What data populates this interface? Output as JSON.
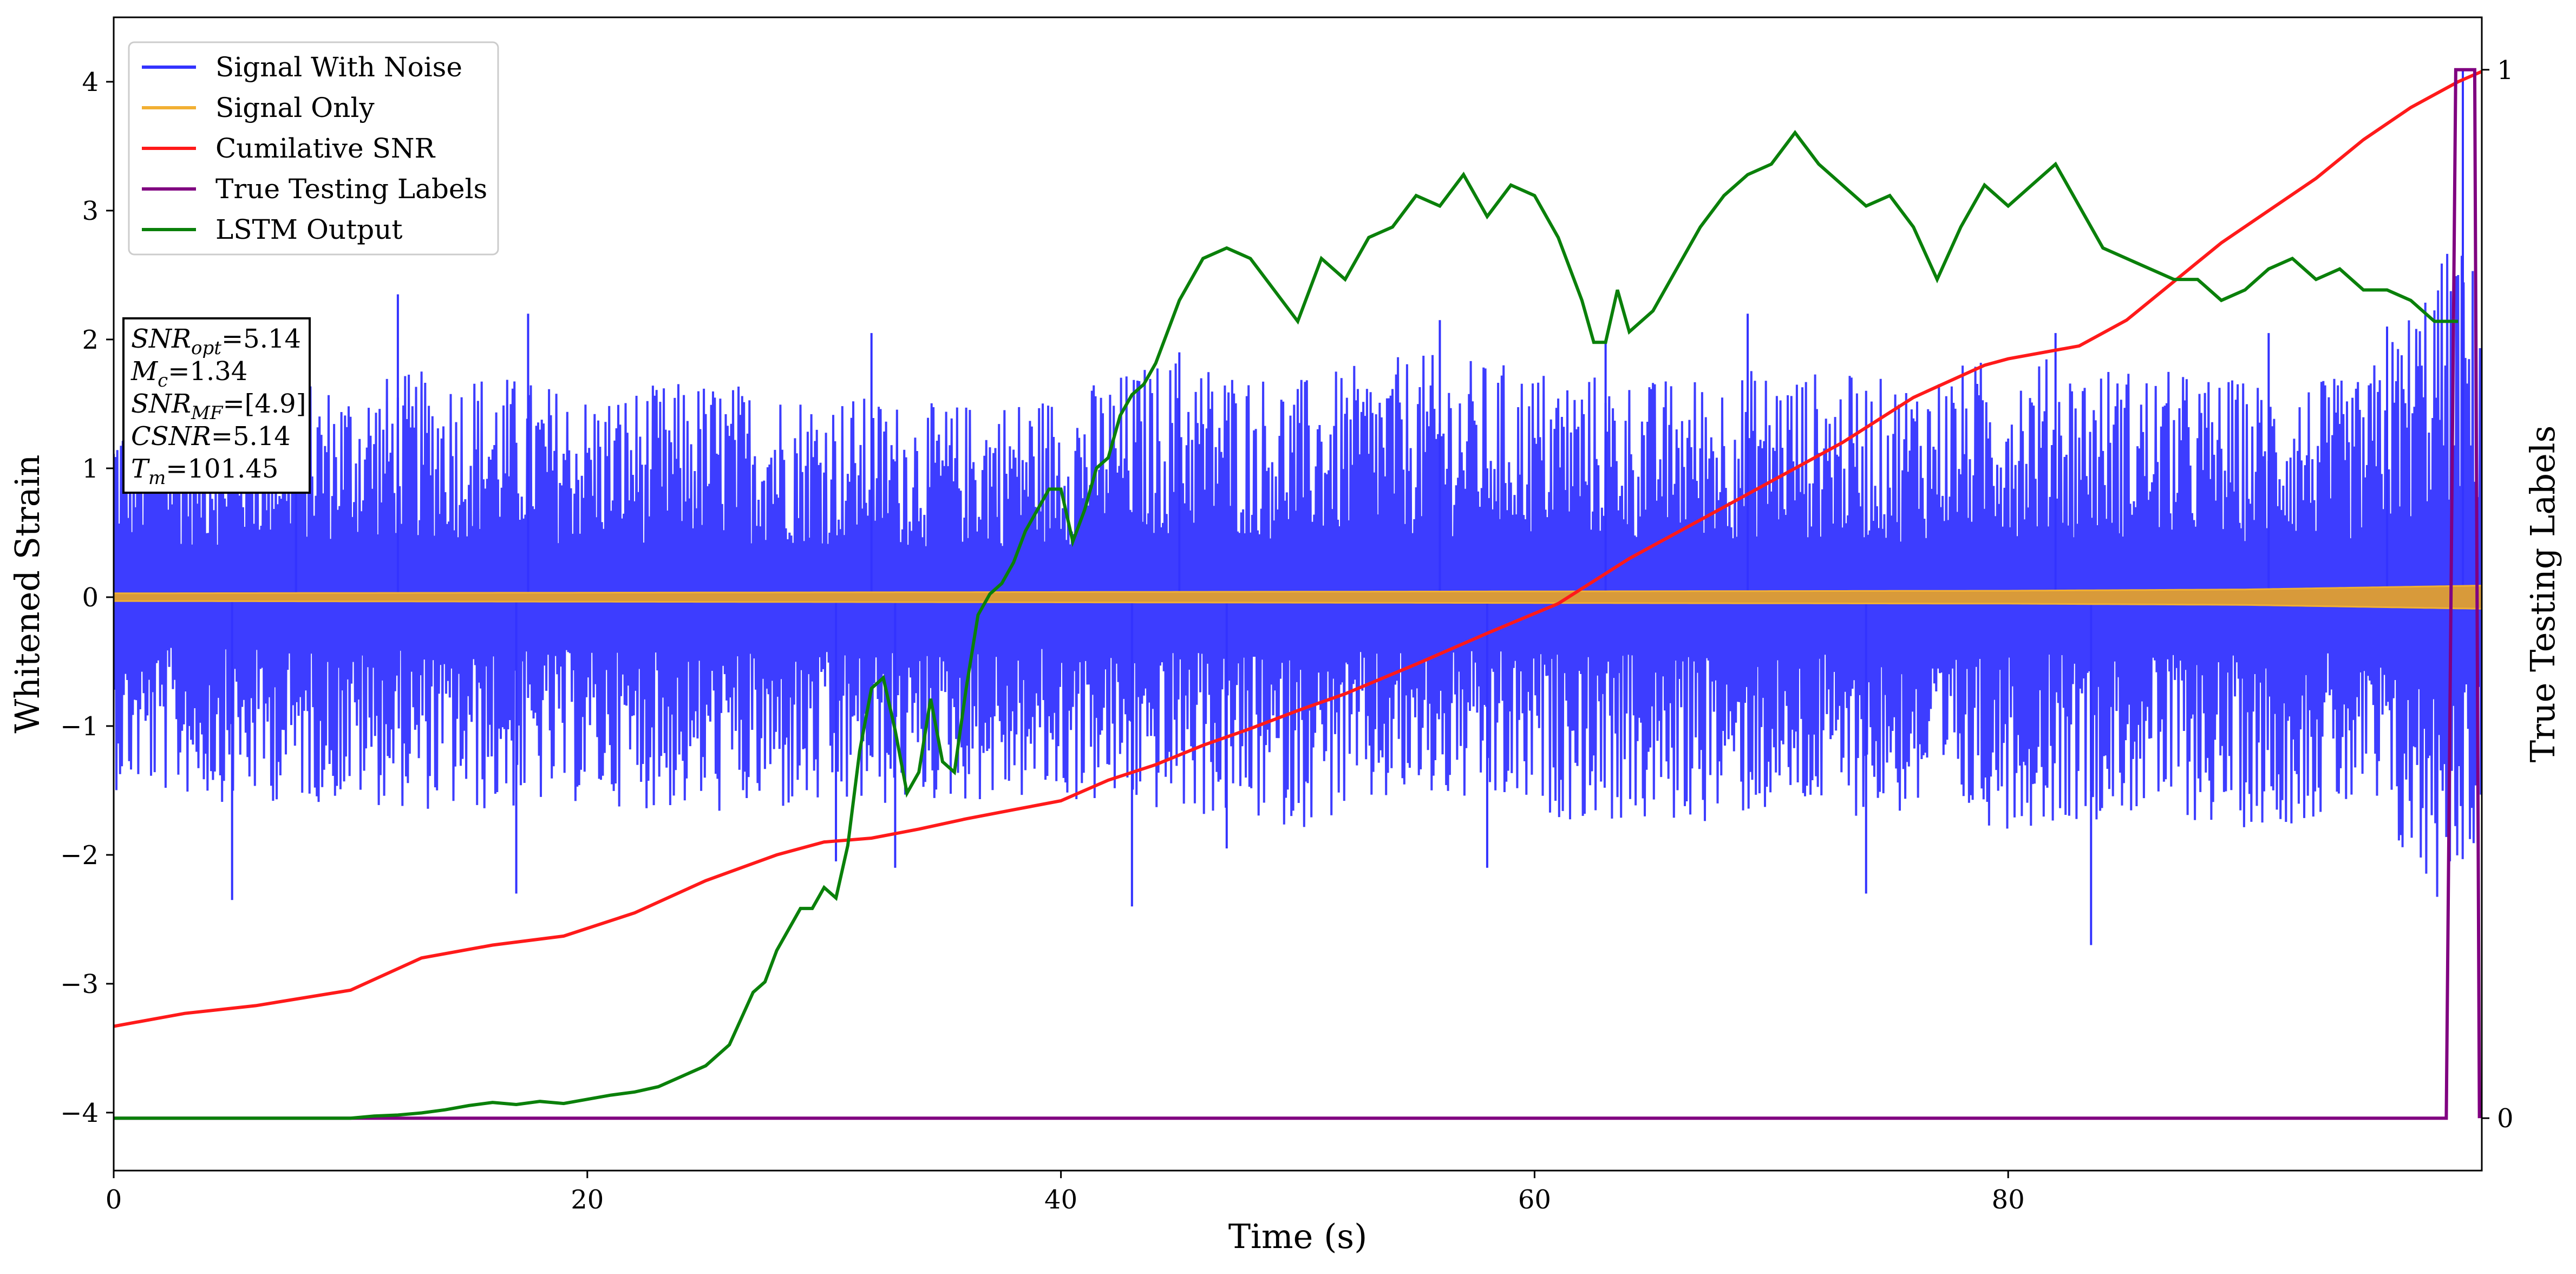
{
  "chart_data": {
    "type": "line",
    "xlabel": "Time (s)",
    "ylabel": "Whitened Strain",
    "y2label": "True Testing Labels",
    "xlim": [
      0,
      100
    ],
    "ylim": [
      -4.45,
      4.5
    ],
    "y2lim": [
      -0.05,
      1.05
    ],
    "x_ticks": [
      "0",
      "20",
      "40",
      "60",
      "80"
    ],
    "x_tick_values": [
      0,
      20,
      40,
      60,
      80
    ],
    "y_ticks": [
      "−4",
      "−3",
      "−2",
      "−1",
      "0",
      "1",
      "2",
      "3",
      "4"
    ],
    "y_tick_values": [
      -4,
      -3,
      -2,
      -1,
      0,
      1,
      2,
      3,
      4
    ],
    "y2_ticks": [
      "0",
      "1"
    ],
    "y2_tick_values": [
      0,
      1
    ],
    "grid": false,
    "legend_position": "top-left",
    "legend": [
      {
        "name": "Signal With Noise",
        "color": "#3333ff"
      },
      {
        "name": "Signal Only",
        "color": "#f2b033"
      },
      {
        "name": "Cumilative SNR",
        "color": "#ff1a1a"
      },
      {
        "name": "True Testing Labels",
        "color": "#800080"
      },
      {
        "name": "LSTM Output",
        "color": "#0a800a"
      }
    ],
    "annotation": {
      "lines": [
        {
          "main": "SNR",
          "sub": "opt",
          "value": "=5.14"
        },
        {
          "main": "M",
          "sub": "c",
          "value": "=1.34"
        },
        {
          "main": "SNR",
          "sub": "MF",
          "value": "=[4.9]"
        },
        {
          "main": "CSNR",
          "sub": "",
          "value": "=5.14"
        },
        {
          "main": "T",
          "sub": "m",
          "value": "=101.45"
        }
      ]
    },
    "series": [
      {
        "name": "Signal With Noise",
        "color": "#3333ff",
        "note_band": "dense noise, typically between -1.7 and 1.7",
        "x": [
          0,
          5,
          10,
          15,
          20,
          25,
          30,
          35,
          40,
          45,
          50,
          55,
          60,
          65,
          70,
          75,
          80,
          85,
          90,
          95,
          98,
          99,
          100
        ],
        "y_upper": [
          1.5,
          1.6,
          1.7,
          1.8,
          1.6,
          1.7,
          1.6,
          1.5,
          1.6,
          1.9,
          1.7,
          1.9,
          1.8,
          1.7,
          1.8,
          1.7,
          1.9,
          1.8,
          1.7,
          1.7,
          2.6,
          2.8,
          2.5
        ],
        "y_lower": [
          -1.5,
          -1.6,
          -1.6,
          -1.7,
          -1.6,
          -1.7,
          -1.7,
          -1.6,
          -1.6,
          -1.7,
          -1.8,
          -1.6,
          -1.7,
          -1.8,
          -1.7,
          -1.7,
          -1.8,
          -1.7,
          -1.8,
          -1.7,
          -2.4,
          -2.1,
          -2.0
        ],
        "spikes": [
          [
            5,
            -2.35
          ],
          [
            7.7,
            2.1
          ],
          [
            12,
            2.35
          ],
          [
            17,
            -2.3
          ],
          [
            17.5,
            2.2
          ],
          [
            30.5,
            -2.05
          ],
          [
            32,
            2.05
          ],
          [
            33,
            -2.1
          ],
          [
            43,
            -2.4
          ],
          [
            45,
            1.9
          ],
          [
            47,
            -1.95
          ],
          [
            56,
            2.15
          ],
          [
            58,
            -2.1
          ],
          [
            63,
            2.0
          ],
          [
            69,
            2.2
          ],
          [
            74,
            -2.3
          ],
          [
            82,
            2.05
          ],
          [
            83.5,
            -2.7
          ],
          [
            91,
            2.05
          ],
          [
            96,
            2.1
          ],
          [
            99.2,
            4.1
          ]
        ]
      },
      {
        "name": "Signal Only",
        "color": "#f2b033",
        "note_band": "thin oscillation around 0",
        "x": [
          0,
          20,
          40,
          60,
          80,
          90,
          100
        ],
        "amplitude": [
          0.03,
          0.035,
          0.04,
          0.045,
          0.05,
          0.06,
          0.09
        ]
      },
      {
        "name": "Cumilative SNR",
        "color": "#ff1a1a",
        "x": [
          0,
          3,
          6,
          10,
          13,
          16,
          19,
          22,
          25,
          28,
          30,
          32,
          34,
          36,
          38,
          40,
          42,
          44,
          46,
          48,
          50,
          52,
          55,
          58,
          61,
          64,
          67,
          70,
          73,
          76,
          79,
          80,
          83,
          85,
          87,
          89,
          91,
          93,
          95,
          97,
          99,
          100
        ],
        "y": [
          -3.33,
          -3.23,
          -3.17,
          -3.05,
          -2.8,
          -2.7,
          -2.63,
          -2.45,
          -2.2,
          -2.0,
          -1.9,
          -1.87,
          -1.8,
          -1.72,
          -1.65,
          -1.58,
          -1.42,
          -1.3,
          -1.15,
          -1.02,
          -0.88,
          -0.75,
          -0.52,
          -0.28,
          -0.05,
          0.3,
          0.6,
          0.9,
          1.2,
          1.55,
          1.8,
          1.85,
          1.95,
          2.15,
          2.45,
          2.75,
          3.0,
          3.25,
          3.55,
          3.8,
          4.0,
          4.08
        ]
      },
      {
        "name": "True Testing Labels",
        "color": "#800080",
        "axis": "right",
        "x": [
          0,
          98.5,
          98.9,
          99.7,
          99.9
        ],
        "y": [
          0,
          0,
          1,
          1,
          0
        ]
      },
      {
        "name": "LSTM Output",
        "color": "#0a800a",
        "x": [
          0,
          10,
          11,
          12,
          13,
          14,
          15,
          16,
          17,
          18,
          19,
          20,
          21,
          22,
          23,
          24,
          25,
          26,
          26.5,
          27,
          27.5,
          28,
          28.5,
          29,
          29.5,
          30,
          30.5,
          31,
          31.5,
          32,
          32.5,
          33,
          33.5,
          34,
          34.5,
          35,
          35.5,
          36,
          36.5,
          37,
          37.5,
          38,
          38.5,
          39,
          39.5,
          40,
          40.5,
          41,
          41.5,
          42,
          42.5,
          43,
          43.5,
          44,
          45,
          46,
          47,
          48,
          49,
          50,
          51,
          52,
          53,
          54,
          55,
          56,
          57,
          58,
          59,
          60,
          61,
          62,
          62.5,
          63,
          63.5,
          64,
          65,
          66,
          67,
          68,
          69,
          70,
          71,
          72,
          73,
          74,
          75,
          76,
          77,
          78,
          79,
          80,
          81,
          82,
          83,
          84,
          85,
          86,
          87,
          88,
          89,
          90,
          91,
          92,
          93,
          94,
          95,
          96,
          97,
          98,
          99
        ],
        "y": [
          0,
          0,
          0.002,
          0.003,
          0.005,
          0.008,
          0.012,
          0.015,
          0.013,
          0.016,
          0.014,
          0.018,
          0.022,
          0.025,
          0.03,
          0.04,
          0.05,
          0.07,
          0.095,
          0.12,
          0.13,
          0.16,
          0.18,
          0.2,
          0.2,
          0.22,
          0.21,
          0.26,
          0.35,
          0.41,
          0.42,
          0.37,
          0.31,
          0.33,
          0.4,
          0.34,
          0.33,
          0.41,
          0.48,
          0.5,
          0.51,
          0.53,
          0.56,
          0.58,
          0.6,
          0.6,
          0.55,
          0.58,
          0.62,
          0.63,
          0.67,
          0.69,
          0.7,
          0.72,
          0.78,
          0.82,
          0.83,
          0.82,
          0.79,
          0.76,
          0.82,
          0.8,
          0.84,
          0.85,
          0.88,
          0.87,
          0.9,
          0.86,
          0.89,
          0.88,
          0.84,
          0.78,
          0.74,
          0.74,
          0.79,
          0.75,
          0.77,
          0.81,
          0.85,
          0.88,
          0.9,
          0.91,
          0.94,
          0.91,
          0.89,
          0.87,
          0.88,
          0.85,
          0.8,
          0.85,
          0.89,
          0.87,
          0.89,
          0.91,
          0.87,
          0.83,
          0.82,
          0.81,
          0.8,
          0.8,
          0.78,
          0.79,
          0.81,
          0.82,
          0.8,
          0.81,
          0.79,
          0.79,
          0.78,
          0.76,
          0.76
        ]
      }
    ]
  }
}
